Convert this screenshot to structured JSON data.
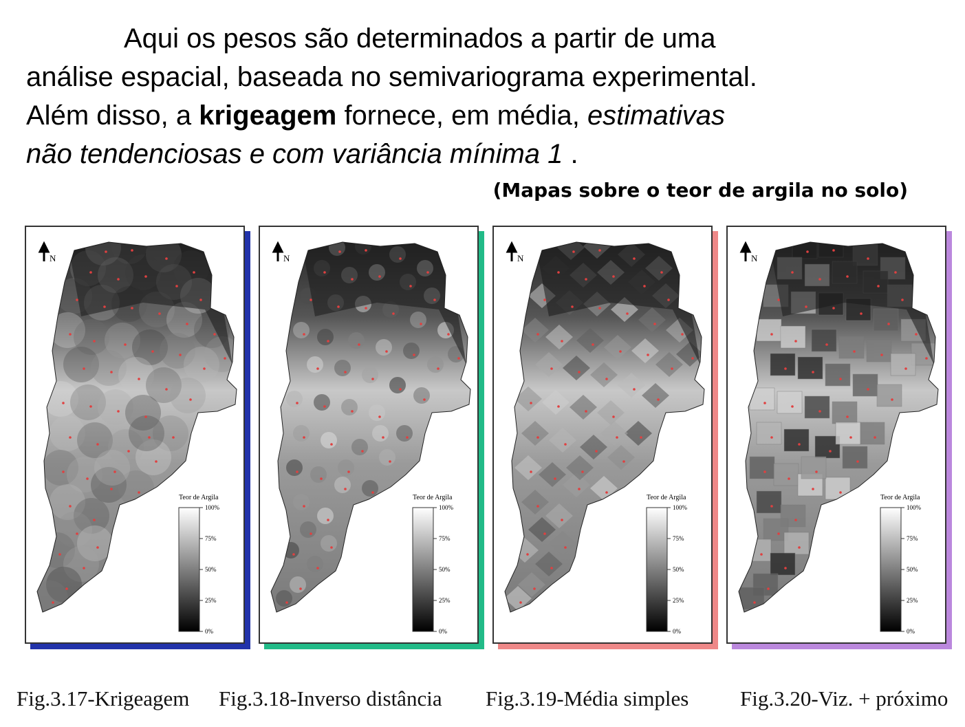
{
  "text": {
    "line1": "Aqui os pesos são determinados a partir de uma",
    "line2": "análise espacial, baseada no semivariograma experimental.",
    "line3_a": "Além disso, a ",
    "line3_bold": "krigeagem",
    "line3_b": " fornece, em média, ",
    "line3_italic": "estimativas",
    "line4_italic": "não tendenciosas e com variância mínima 1",
    "line4_tail": " ."
  },
  "subtitle": "(Mapas sobre o teor de argila no solo)",
  "maps": [
    {
      "caption": "Fig.3.17-Krigeagem",
      "shadow_color": "#2233aa",
      "method": "krigeagem"
    },
    {
      "caption": "Fig.3.18-Inverso distância",
      "shadow_color": "#22bb88",
      "method": "inverso"
    },
    {
      "caption": "Fig.3.19-Média simples",
      "shadow_color": "#ee8888",
      "method": "media"
    },
    {
      "caption": "Fig.3.20-Viz. + próximo",
      "shadow_color": "#bb88dd",
      "method": "vizinho"
    }
  ],
  "legend": {
    "title": "Teor de Argila",
    "ticks": [
      "100%",
      "75%",
      "50%",
      "25%",
      "0%"
    ]
  },
  "north_label": "N",
  "colors": {
    "sample_point": "#e04040",
    "map_dark": "#111111",
    "map_light": "#f4f4f4"
  }
}
